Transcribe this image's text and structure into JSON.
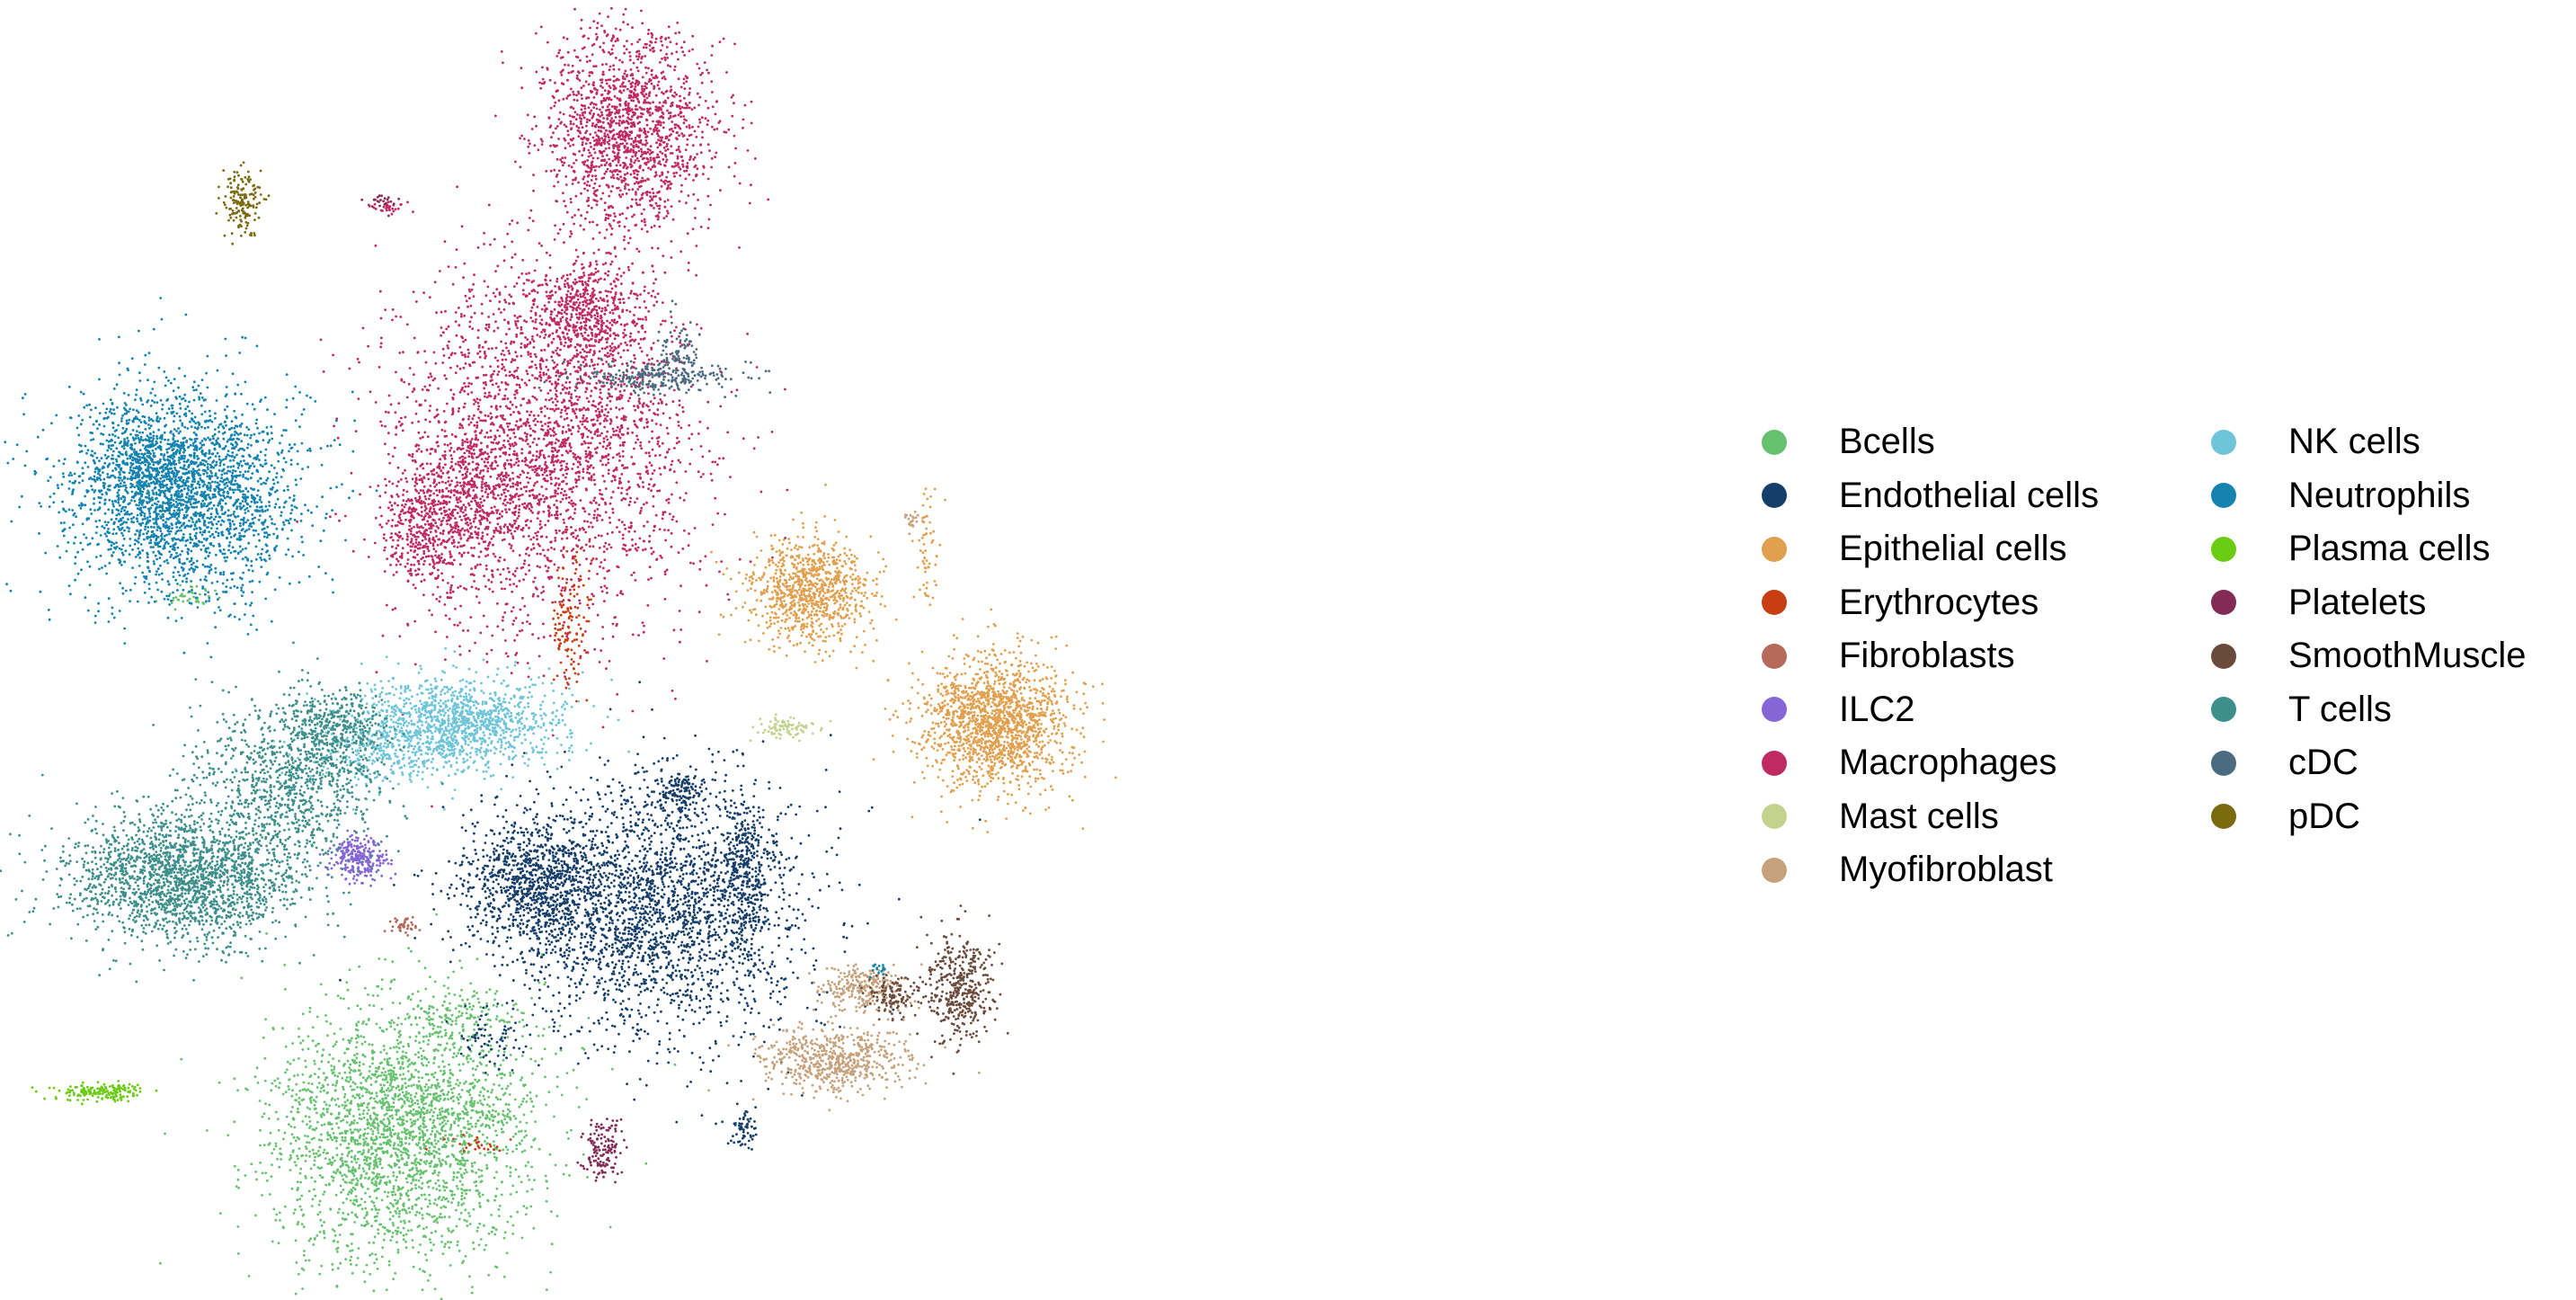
{
  "chart_data": {
    "type": "scatter",
    "title": "",
    "xlabel": "",
    "ylabel": "",
    "axes_visible": false,
    "grid": false,
    "legend_placement": "right",
    "legend_columns": 2,
    "series": [
      {
        "name": "Bcells",
        "color": "#66c26e",
        "clusters": [
          {
            "cx": 0.24,
            "cy": 0.87,
            "sx": 0.04,
            "sy": 0.05,
            "n": 2600
          },
          {
            "cx": 0.275,
            "cy": 0.78,
            "sx": 0.02,
            "sy": 0.01,
            "n": 120
          },
          {
            "cx": 0.115,
            "cy": 0.46,
            "sx": 0.008,
            "sy": 0.004,
            "n": 40
          },
          {
            "cx": 0.295,
            "cy": 0.86,
            "sx": 0.008,
            "sy": 0.003,
            "n": 40
          }
        ]
      },
      {
        "name": "Endothelial cells",
        "color": "#163e6a",
        "clusters": [
          {
            "cx": 0.39,
            "cy": 0.7,
            "sx": 0.045,
            "sy": 0.05,
            "n": 2400
          },
          {
            "cx": 0.32,
            "cy": 0.68,
            "sx": 0.022,
            "sy": 0.025,
            "n": 900
          },
          {
            "cx": 0.445,
            "cy": 0.67,
            "sx": 0.008,
            "sy": 0.03,
            "n": 350
          },
          {
            "cx": 0.405,
            "cy": 0.61,
            "sx": 0.008,
            "sy": 0.01,
            "n": 150
          },
          {
            "cx": 0.445,
            "cy": 0.87,
            "sx": 0.004,
            "sy": 0.008,
            "n": 60
          },
          {
            "cx": 0.295,
            "cy": 0.8,
            "sx": 0.012,
            "sy": 0.01,
            "n": 60
          }
        ]
      },
      {
        "name": "Epithelial cells",
        "color": "#e0a04e",
        "clusters": [
          {
            "cx": 0.595,
            "cy": 0.555,
            "sx": 0.022,
            "sy": 0.025,
            "n": 1600
          },
          {
            "cx": 0.485,
            "cy": 0.455,
            "sx": 0.018,
            "sy": 0.02,
            "n": 900
          },
          {
            "cx": 0.555,
            "cy": 0.42,
            "sx": 0.004,
            "sy": 0.03,
            "n": 60
          }
        ]
      },
      {
        "name": "Erythrocytes",
        "color": "#c83d12",
        "clusters": [
          {
            "cx": 0.34,
            "cy": 0.48,
            "sx": 0.005,
            "sy": 0.03,
            "n": 140
          },
          {
            "cx": 0.285,
            "cy": 0.88,
            "sx": 0.01,
            "sy": 0.004,
            "n": 25
          }
        ]
      },
      {
        "name": "Fibroblasts",
        "color": "#b56a5a",
        "clusters": [
          {
            "cx": 0.242,
            "cy": 0.712,
            "sx": 0.004,
            "sy": 0.004,
            "n": 40
          }
        ]
      },
      {
        "name": "ILC2",
        "color": "#8566d6",
        "clusters": [
          {
            "cx": 0.215,
            "cy": 0.66,
            "sx": 0.008,
            "sy": 0.008,
            "n": 260
          }
        ]
      },
      {
        "name": "Macrophages",
        "color": "#c02a62",
        "clusters": [
          {
            "cx": 0.375,
            "cy": 0.1,
            "sx": 0.025,
            "sy": 0.04,
            "n": 1600
          },
          {
            "cx": 0.33,
            "cy": 0.34,
            "sx": 0.045,
            "sy": 0.07,
            "n": 2600
          },
          {
            "cx": 0.28,
            "cy": 0.38,
            "sx": 0.02,
            "sy": 0.04,
            "n": 700
          },
          {
            "cx": 0.25,
            "cy": 0.41,
            "sx": 0.01,
            "sy": 0.02,
            "n": 300
          },
          {
            "cx": 0.35,
            "cy": 0.24,
            "sx": 0.015,
            "sy": 0.02,
            "n": 500
          },
          {
            "cx": 0.232,
            "cy": 0.16,
            "sx": 0.006,
            "sy": 0.003,
            "n": 30
          }
        ]
      },
      {
        "name": "Mast cells",
        "color": "#c3d28c",
        "clusters": [
          {
            "cx": 0.47,
            "cy": 0.56,
            "sx": 0.01,
            "sy": 0.004,
            "n": 90
          }
        ]
      },
      {
        "name": "Myofibroblast",
        "color": "#c6a27c",
        "clusters": [
          {
            "cx": 0.5,
            "cy": 0.815,
            "sx": 0.022,
            "sy": 0.012,
            "n": 600
          },
          {
            "cx": 0.515,
            "cy": 0.76,
            "sx": 0.012,
            "sy": 0.008,
            "n": 260
          },
          {
            "cx": 0.545,
            "cy": 0.4,
            "sx": 0.003,
            "sy": 0.004,
            "n": 20
          }
        ]
      },
      {
        "name": "NK cells",
        "color": "#6ec4d8",
        "clusters": [
          {
            "cx": 0.275,
            "cy": 0.555,
            "sx": 0.03,
            "sy": 0.016,
            "n": 1200
          },
          {
            "cx": 0.23,
            "cy": 0.58,
            "sx": 0.025,
            "sy": 0.012,
            "n": 300
          }
        ]
      },
      {
        "name": "Neutrophils",
        "color": "#1483b0",
        "clusters": [
          {
            "cx": 0.11,
            "cy": 0.38,
            "sx": 0.035,
            "sy": 0.04,
            "n": 2400
          },
          {
            "cx": 0.09,
            "cy": 0.36,
            "sx": 0.02,
            "sy": 0.025,
            "n": 500
          },
          {
            "cx": 0.525,
            "cy": 0.745,
            "sx": 0.003,
            "sy": 0.003,
            "n": 15
          }
        ]
      },
      {
        "name": "Plasma cells",
        "color": "#6acb13",
        "clusters": [
          {
            "cx": 0.06,
            "cy": 0.84,
            "sx": 0.014,
            "sy": 0.003,
            "n": 160
          }
        ]
      },
      {
        "name": "Platelets",
        "color": "#842b55",
        "clusters": [
          {
            "cx": 0.36,
            "cy": 0.885,
            "sx": 0.006,
            "sy": 0.012,
            "n": 140
          },
          {
            "cx": 0.23,
            "cy": 0.155,
            "sx": 0.006,
            "sy": 0.003,
            "n": 20
          }
        ]
      },
      {
        "name": "SmoothMuscle",
        "color": "#6a4a3a",
        "clusters": [
          {
            "cx": 0.575,
            "cy": 0.76,
            "sx": 0.01,
            "sy": 0.02,
            "n": 400
          },
          {
            "cx": 0.535,
            "cy": 0.765,
            "sx": 0.008,
            "sy": 0.008,
            "n": 120
          }
        ]
      },
      {
        "name": "T cells",
        "color": "#3c8f8a",
        "clusters": [
          {
            "cx": 0.11,
            "cy": 0.675,
            "sx": 0.035,
            "sy": 0.025,
            "n": 2000
          },
          {
            "cx": 0.17,
            "cy": 0.6,
            "sx": 0.03,
            "sy": 0.03,
            "n": 900
          },
          {
            "cx": 0.2,
            "cy": 0.56,
            "sx": 0.015,
            "sy": 0.015,
            "n": 400
          }
        ]
      },
      {
        "name": "cDC",
        "color": "#4b6b80",
        "clusters": [
          {
            "cx": 0.39,
            "cy": 0.29,
            "sx": 0.025,
            "sy": 0.006,
            "n": 260
          },
          {
            "cx": 0.405,
            "cy": 0.27,
            "sx": 0.006,
            "sy": 0.012,
            "n": 80
          }
        ]
      },
      {
        "name": "pDC",
        "color": "#7a6a10",
        "clusters": [
          {
            "cx": 0.145,
            "cy": 0.155,
            "sx": 0.006,
            "sy": 0.012,
            "n": 160
          }
        ]
      }
    ]
  }
}
